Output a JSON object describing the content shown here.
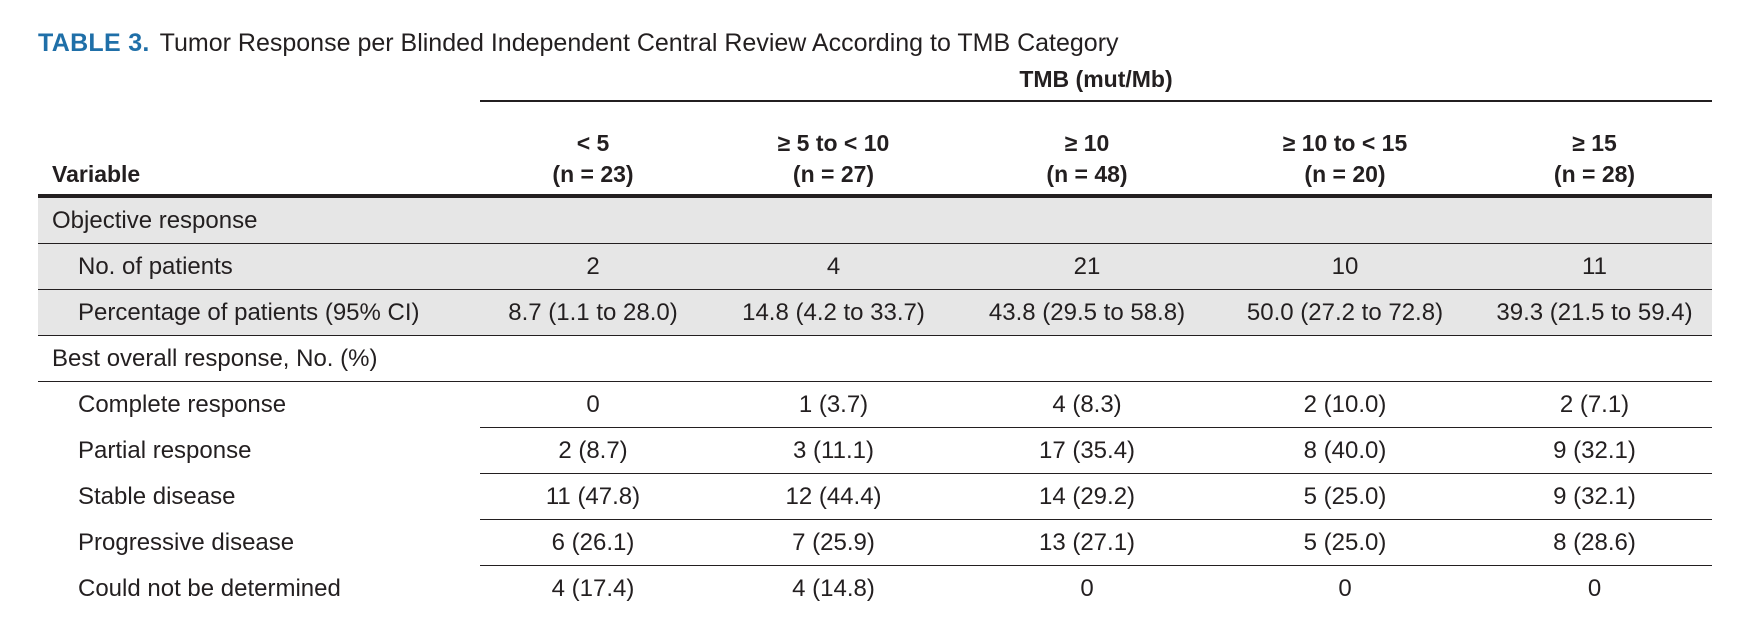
{
  "caption": {
    "label": "TABLE 3.",
    "text": "Tumor Response per Blinded Independent Central Review According to TMB Category"
  },
  "header": {
    "spanner": "TMB (mut/Mb)",
    "variable": "Variable",
    "columns": [
      {
        "range": "< 5",
        "n": "(n = 23)"
      },
      {
        "range": "≥ 5 to < 10",
        "n": "(n = 27)"
      },
      {
        "range": "≥ 10",
        "n": "(n = 48)"
      },
      {
        "range": "≥ 10 to < 15",
        "n": "(n = 20)"
      },
      {
        "range": "≥ 15",
        "n": "(n = 28)"
      }
    ]
  },
  "objective_response": {
    "title": "Objective response",
    "rows": [
      {
        "label": "No. of patients",
        "values": [
          "2",
          "4",
          "21",
          "10",
          "11"
        ]
      },
      {
        "label": "Percentage of patients (95% CI)",
        "values": [
          "8.7 (1.1 to 28.0)",
          "14.8 (4.2 to 33.7)",
          "43.8 (29.5 to 58.8)",
          "50.0 (27.2 to 72.8)",
          "39.3 (21.5 to 59.4)"
        ]
      }
    ]
  },
  "best_overall_response": {
    "title": "Best overall response, No. (%)",
    "rows": [
      {
        "label": "Complete response",
        "values": [
          "0",
          "1 (3.7)",
          "4 (8.3)",
          "2 (10.0)",
          "2 (7.1)"
        ]
      },
      {
        "label": "Partial response",
        "values": [
          "2 (8.7)",
          "3 (11.1)",
          "17 (35.4)",
          "8 (40.0)",
          "9 (32.1)"
        ]
      },
      {
        "label": "Stable disease",
        "values": [
          "11 (47.8)",
          "12 (44.4)",
          "14 (29.2)",
          "5 (25.0)",
          "9 (32.1)"
        ]
      },
      {
        "label": "Progressive disease",
        "values": [
          "6 (26.1)",
          "7 (25.9)",
          "13 (27.1)",
          "5 (25.0)",
          "8 (28.6)"
        ]
      },
      {
        "label": "Could not be determined",
        "values": [
          "4 (17.4)",
          "4 (14.8)",
          "0",
          "0",
          "0"
        ]
      }
    ]
  },
  "colors": {
    "caption_label": "#1f6fa8",
    "shaded_row": "#e6e6e6",
    "text": "#231f20"
  }
}
